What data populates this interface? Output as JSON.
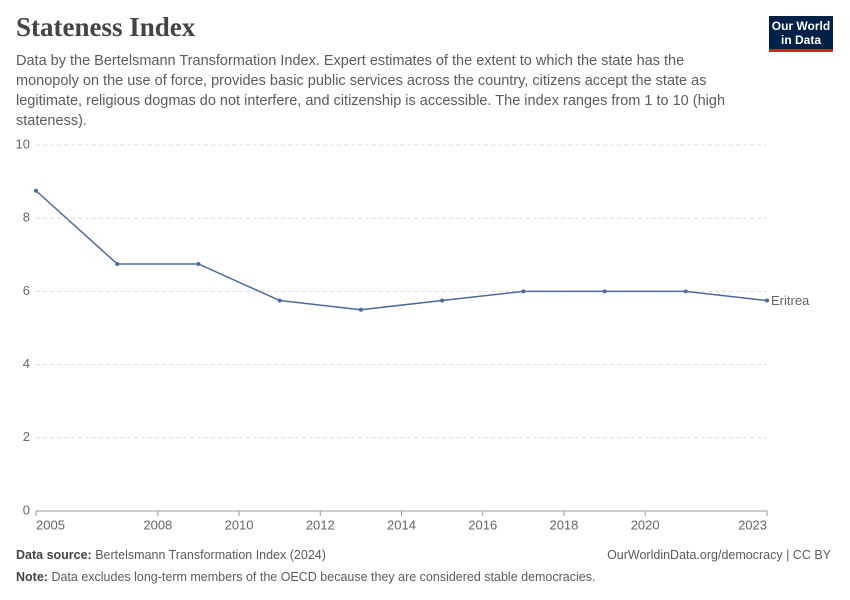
{
  "chart_data": {
    "type": "line",
    "title": "Stateness Index",
    "subtitle": "Data by the Bertelsmann Transformation Index. Expert estimates of the extent to which the state has the monopoly on the use of force, provides basic public services across the country, citizens accept the state as legitimate, religious dogmas do not interfere, and citizenship is accessible. The index ranges from 1 to 10 (high stateness).",
    "logo": [
      "Our World",
      "in Data"
    ],
    "x": [
      2005,
      2007,
      2009,
      2011,
      2013,
      2015,
      2017,
      2019,
      2021,
      2023
    ],
    "series": [
      {
        "name": "Eritrea",
        "color": "#4c6a9c",
        "values": [
          8.75,
          6.75,
          6.75,
          5.75,
          5.5,
          5.75,
          6,
          6,
          6,
          5.75
        ]
      }
    ],
    "xlim": [
      2005,
      2023
    ],
    "xticks": [
      2005,
      2008,
      2010,
      2012,
      2014,
      2016,
      2018,
      2020,
      2023
    ],
    "ylim": [
      0,
      10
    ],
    "yticks": [
      0,
      2,
      4,
      6,
      8,
      10
    ],
    "grid": true,
    "source_label": "Data source:",
    "source": "Bertelsmann Transformation Index (2024)",
    "url": "OurWorldinData.org/democracy | CC BY",
    "note_label": "Note:",
    "note": "Data excludes long-term members of the OECD because they are considered stable democracies."
  }
}
